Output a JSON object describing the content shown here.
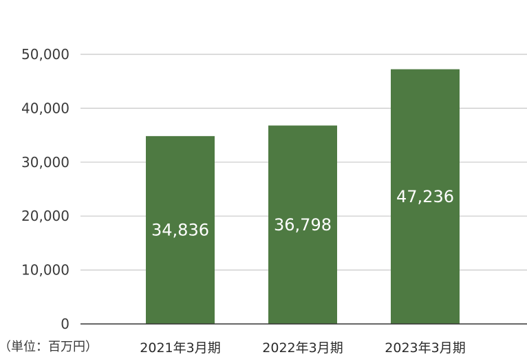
{
  "chart_data": {
    "type": "bar",
    "unit_label": "（単位：百万円）",
    "categories": [
      "2021年3月期",
      "2022年3月期",
      "2023年3月期"
    ],
    "values": [
      34836,
      36798,
      47236
    ],
    "data_labels": [
      "34,836",
      "36,798",
      "47,236"
    ],
    "ylim": [
      0,
      50000
    ],
    "yticks": [
      0,
      10000,
      20000,
      30000,
      40000,
      50000
    ],
    "ytick_labels": [
      "0",
      "10,000",
      "20,000",
      "30,000",
      "40,000",
      "50,000"
    ],
    "grid": true,
    "bar_color": "#4e7a42",
    "grid_color": "#c8c8c8",
    "axis_color": "#333333"
  }
}
